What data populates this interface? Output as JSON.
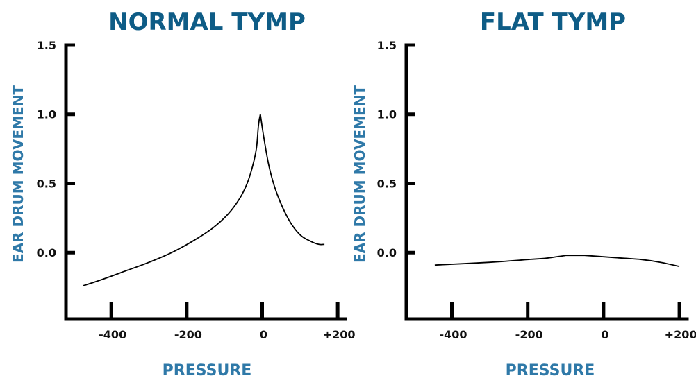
{
  "chart_data": [
    {
      "type": "line",
      "title": "NORMAL TYMP",
      "xlabel": "PRESSURE",
      "ylabel": "EAR DRUM MOVEMENT",
      "x_ticks": [
        "-400",
        "-200",
        "0",
        "+200"
      ],
      "x_tick_values": [
        -400,
        -200,
        0,
        200
      ],
      "y_ticks": [
        "1.5",
        "1.0",
        "0.5",
        "0.0"
      ],
      "y_tick_values": [
        1.5,
        1.0,
        0.5,
        0.0
      ],
      "xlim": [
        -520,
        220
      ],
      "ylim": [
        -0.48,
        1.5
      ],
      "grid": false,
      "legend": "none",
      "line_color": "#000000",
      "series": [
        {
          "x": [
            -475,
            -420,
            -360,
            -300,
            -240,
            -180,
            -130,
            -90,
            -60,
            -40,
            -25,
            -15,
            -10,
            -5,
            5,
            20,
            40,
            70,
            100,
            130,
            150,
            165
          ],
          "y": [
            -0.24,
            -0.19,
            -0.13,
            -0.07,
            0.0,
            0.09,
            0.18,
            0.28,
            0.39,
            0.5,
            0.63,
            0.76,
            0.92,
            1.0,
            0.82,
            0.6,
            0.42,
            0.24,
            0.13,
            0.08,
            0.06,
            0.06
          ]
        }
      ]
    },
    {
      "type": "line",
      "title": "FLAT TYMP",
      "xlabel": "PRESSURE",
      "ylabel": "EAR DRUM MOVEMENT",
      "x_ticks": [
        "-400",
        "-200",
        "0",
        "+200"
      ],
      "x_tick_values": [
        -400,
        -200,
        0,
        200
      ],
      "y_ticks": [
        "1.5",
        "1.0",
        "0.5",
        "0.0"
      ],
      "y_tick_values": [
        1.5,
        1.0,
        0.5,
        0.0
      ],
      "xlim": [
        -520,
        220
      ],
      "ylim": [
        -0.48,
        1.5
      ],
      "grid": false,
      "legend": "none",
      "line_color": "#000000",
      "series": [
        {
          "x": [
            -445,
            -300,
            -200,
            -150,
            -100,
            -50,
            0,
            50,
            100,
            150,
            200
          ],
          "y": [
            -0.09,
            -0.07,
            -0.05,
            -0.04,
            -0.02,
            -0.02,
            -0.03,
            -0.04,
            -0.05,
            -0.07,
            -0.1
          ]
        }
      ]
    }
  ]
}
